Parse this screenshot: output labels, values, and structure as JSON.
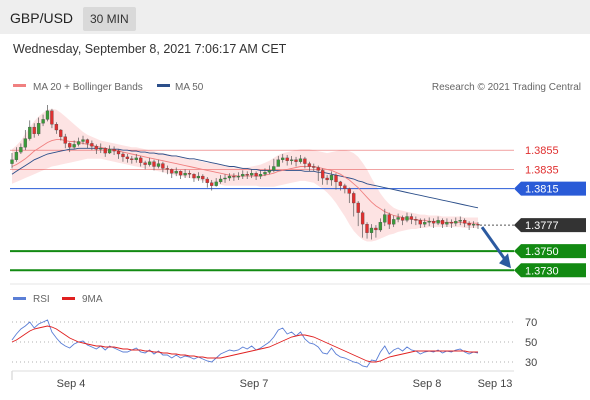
{
  "header": {
    "symbol": "GBP/USD",
    "timeframe": "30 MIN"
  },
  "datetime": "Wednesday, September 8, 2021 7:06:17 AM CET",
  "source": "Research © 2021 Trading Central",
  "legend": [
    {
      "label": "MA 20 + Bollinger Bands",
      "color": "#f08080"
    },
    {
      "label": "MA 50",
      "color": "#2c4f8a"
    }
  ],
  "rsi_legend": [
    {
      "label": "RSI",
      "color": "#5b7fd6"
    },
    {
      "label": "9MA",
      "color": "#e02020"
    }
  ],
  "chart_data": [
    {
      "type": "candlestick",
      "title": "GBP/USD 30 MIN",
      "x_labels": [
        "Sep 4",
        "Sep 7",
        "Sep 8",
        "Sep 13"
      ],
      "ylim": [
        1.3722,
        1.3902
      ],
      "levels": [
        {
          "label": "1.3855",
          "value": 1.3855,
          "kind": "resistance",
          "color": "#e03030"
        },
        {
          "label": "1.3835",
          "value": 1.3835,
          "kind": "resistance",
          "color": "#e03030"
        },
        {
          "label": "1.3815",
          "value": 1.3815,
          "kind": "pivot",
          "color": "#2a5bd7"
        },
        {
          "label": "1.3777",
          "value": 1.3777,
          "kind": "last",
          "color": "#333333"
        },
        {
          "label": "1.3750",
          "value": 1.375,
          "kind": "target",
          "color": "#128a12"
        },
        {
          "label": "1.3730",
          "value": 1.373,
          "kind": "target",
          "color": "#128a12"
        }
      ],
      "close": [
        1.3845,
        1.3853,
        1.3858,
        1.3867,
        1.3879,
        1.3872,
        1.3883,
        1.3887,
        1.3896,
        1.3882,
        1.3876,
        1.3869,
        1.3862,
        1.3858,
        1.3861,
        1.3864,
        1.3866,
        1.3862,
        1.3859,
        1.3856,
        1.3857,
        1.3852,
        1.3856,
        1.3854,
        1.3851,
        1.3848,
        1.3846,
        1.3845,
        1.3847,
        1.3842,
        1.384,
        1.3843,
        1.3838,
        1.3841,
        1.3836,
        1.3835,
        1.3831,
        1.3833,
        1.3829,
        1.3831,
        1.383,
        1.3826,
        1.3828,
        1.3825,
        1.3821,
        1.3818,
        1.3822,
        1.3825,
        1.3826,
        1.3828,
        1.3827,
        1.3828,
        1.383,
        1.3829,
        1.3831,
        1.3828,
        1.383,
        1.3832,
        1.3834,
        1.3838,
        1.3845,
        1.3847,
        1.3844,
        1.3845,
        1.3843,
        1.3846,
        1.3841,
        1.3838,
        1.3837,
        1.3834,
        1.3826,
        1.3824,
        1.3829,
        1.3822,
        1.3818,
        1.3815,
        1.381,
        1.38,
        1.379,
        1.3778,
        1.3769,
        1.3774,
        1.3772,
        1.378,
        1.3788,
        1.3778,
        1.3783,
        1.3785,
        1.3782,
        1.3786,
        1.3783,
        1.3782,
        1.3778,
        1.378,
        1.3781,
        1.3779,
        1.3782,
        1.3778,
        1.378,
        1.3779,
        1.3781,
        1.3782,
        1.3779,
        1.3777,
        1.3778,
        1.3777
      ],
      "high": [
        1.3852,
        1.3858,
        1.3862,
        1.3876,
        1.3886,
        1.3883,
        1.3889,
        1.3892,
        1.3902,
        1.3898,
        1.3884,
        1.3877,
        1.3872,
        1.3863,
        1.3865,
        1.3868,
        1.387,
        1.3867,
        1.3865,
        1.3861,
        1.3862,
        1.3858,
        1.386,
        1.3859,
        1.3856,
        1.3853,
        1.3851,
        1.3849,
        1.3851,
        1.3849,
        1.3844,
        1.3847,
        1.3845,
        1.3845,
        1.3843,
        1.3839,
        1.3836,
        1.3837,
        1.3834,
        1.3835,
        1.3834,
        1.3831,
        1.3832,
        1.383,
        1.3827,
        1.3824,
        1.3826,
        1.3829,
        1.383,
        1.3831,
        1.3831,
        1.3832,
        1.3834,
        1.3833,
        1.3835,
        1.3833,
        1.3834,
        1.3836,
        1.3839,
        1.3846,
        1.3849,
        1.3851,
        1.385,
        1.3849,
        1.3848,
        1.385,
        1.3848,
        1.3843,
        1.3841,
        1.3839,
        1.3836,
        1.3829,
        1.3833,
        1.3831,
        1.3823,
        1.382,
        1.3816,
        1.3812,
        1.3802,
        1.3792,
        1.378,
        1.3778,
        1.3777,
        1.3784,
        1.3794,
        1.379,
        1.3787,
        1.3789,
        1.3787,
        1.379,
        1.3789,
        1.3786,
        1.3784,
        1.3784,
        1.3785,
        1.3784,
        1.3786,
        1.3784,
        1.3784,
        1.3783,
        1.3785,
        1.3786,
        1.3784,
        1.3781,
        1.3781,
        1.378
      ],
      "low": [
        1.3836,
        1.3843,
        1.3851,
        1.3855,
        1.3865,
        1.3868,
        1.387,
        1.388,
        1.3885,
        1.3878,
        1.3872,
        1.3865,
        1.3857,
        1.3853,
        1.3856,
        1.3859,
        1.3861,
        1.3857,
        1.3855,
        1.3851,
        1.3852,
        1.3848,
        1.3851,
        1.385,
        1.3846,
        1.3843,
        1.3842,
        1.3841,
        1.3842,
        1.3838,
        1.3835,
        1.3838,
        1.3834,
        1.3836,
        1.3832,
        1.383,
        1.3826,
        1.3828,
        1.3825,
        1.3826,
        1.3826,
        1.3822,
        1.3823,
        1.3821,
        1.3816,
        1.3813,
        1.3817,
        1.382,
        1.3821,
        1.3823,
        1.3823,
        1.3824,
        1.3825,
        1.3825,
        1.3826,
        1.3824,
        1.3825,
        1.3828,
        1.383,
        1.3832,
        1.384,
        1.3842,
        1.3839,
        1.384,
        1.3838,
        1.3841,
        1.3836,
        1.3833,
        1.3833,
        1.3823,
        1.3819,
        1.3819,
        1.3818,
        1.3814,
        1.3813,
        1.381,
        1.38,
        1.3786,
        1.3776,
        1.3764,
        1.3763,
        1.3762,
        1.3764,
        1.377,
        1.3776,
        1.3773,
        1.3775,
        1.378,
        1.3777,
        1.378,
        1.3778,
        1.3777,
        1.3774,
        1.3775,
        1.3776,
        1.3774,
        1.3777,
        1.3774,
        1.3775,
        1.3774,
        1.3776,
        1.3777,
        1.3775,
        1.3772,
        1.3774,
        1.3773
      ],
      "ma20": [
        1.3838,
        1.384,
        1.3843,
        1.3846,
        1.385,
        1.3854,
        1.3857,
        1.386,
        1.3863,
        1.3865,
        1.3866,
        1.3866,
        1.3865,
        1.3864,
        1.3864,
        1.3863,
        1.3862,
        1.3861,
        1.386,
        1.3859,
        1.3858,
        1.3857,
        1.3856,
        1.3855,
        1.3854,
        1.3853,
        1.3852,
        1.3851,
        1.385,
        1.3849,
        1.3848,
        1.3847,
        1.3846,
        1.3845,
        1.3844,
        1.3843,
        1.3842,
        1.3841,
        1.384,
        1.3839,
        1.3838,
        1.3837,
        1.3836,
        1.3835,
        1.3834,
        1.3833,
        1.3832,
        1.3831,
        1.383,
        1.3829,
        1.3829,
        1.3828,
        1.3828,
        1.3828,
        1.3828,
        1.3828,
        1.3828,
        1.3829,
        1.383,
        1.3831,
        1.3833,
        1.3834,
        1.3835,
        1.3836,
        1.3837,
        1.3838,
        1.3838,
        1.3838,
        1.3838,
        1.3837,
        1.3836,
        1.3835,
        1.3834,
        1.3832,
        1.383,
        1.3827,
        1.3824,
        1.382,
        1.3816,
        1.3811,
        1.3806,
        1.3801,
        1.3797,
        1.3794,
        1.3791,
        1.3789,
        1.3787,
        1.3786,
        1.3785,
        1.3784,
        1.3783,
        1.3783,
        1.3782,
        1.3782,
        1.3781,
        1.3781,
        1.3781,
        1.378,
        1.378,
        1.378,
        1.378,
        1.378,
        1.3779,
        1.3779,
        1.3779,
        1.3779
      ],
      "bb_upper": [
        1.3856,
        1.386,
        1.3865,
        1.3872,
        1.3879,
        1.3885,
        1.389,
        1.3894,
        1.3897,
        1.3898,
        1.3897,
        1.3894,
        1.389,
        1.3886,
        1.3882,
        1.3878,
        1.3874,
        1.3871,
        1.3869,
        1.3867,
        1.3865,
        1.3864,
        1.3863,
        1.3862,
        1.3861,
        1.386,
        1.3859,
        1.3858,
        1.3858,
        1.3857,
        1.3856,
        1.3855,
        1.3854,
        1.3853,
        1.3852,
        1.3851,
        1.385,
        1.3849,
        1.3848,
        1.3847,
        1.3846,
        1.3845,
        1.3844,
        1.3843,
        1.3842,
        1.3842,
        1.3841,
        1.384,
        1.3839,
        1.3838,
        1.3837,
        1.3837,
        1.3837,
        1.3837,
        1.3838,
        1.3839,
        1.384,
        1.3842,
        1.3844,
        1.3847,
        1.385,
        1.3852,
        1.3853,
        1.3854,
        1.3855,
        1.3856,
        1.3856,
        1.3856,
        1.3855,
        1.3854,
        1.3853,
        1.3852,
        1.3853,
        1.3854,
        1.3855,
        1.3855,
        1.3854,
        1.3852,
        1.3848,
        1.3842,
        1.3835,
        1.3826,
        1.3818,
        1.381,
        1.3804,
        1.3799,
        1.3795,
        1.3793,
        1.3792,
        1.3791,
        1.379,
        1.3789,
        1.3788,
        1.3788,
        1.3787,
        1.3787,
        1.3787,
        1.3786,
        1.3786,
        1.3786,
        1.3786,
        1.3786,
        1.3785,
        1.3785,
        1.3785,
        1.3785
      ],
      "bb_lower": [
        1.382,
        1.3822,
        1.3824,
        1.3826,
        1.3828,
        1.383,
        1.3832,
        1.3834,
        1.3836,
        1.3838,
        1.3839,
        1.384,
        1.3841,
        1.3842,
        1.3843,
        1.3844,
        1.3845,
        1.3846,
        1.3846,
        1.3846,
        1.3846,
        1.3845,
        1.3844,
        1.3843,
        1.3842,
        1.3841,
        1.384,
        1.3839,
        1.3838,
        1.3837,
        1.3836,
        1.3835,
        1.3834,
        1.3833,
        1.3832,
        1.3831,
        1.383,
        1.3829,
        1.3828,
        1.3827,
        1.3826,
        1.3825,
        1.3824,
        1.3823,
        1.3822,
        1.3821,
        1.382,
        1.3819,
        1.3818,
        1.3818,
        1.3818,
        1.3818,
        1.3818,
        1.3818,
        1.3818,
        1.3818,
        1.3817,
        1.3817,
        1.3817,
        1.3817,
        1.3818,
        1.3819,
        1.382,
        1.3821,
        1.3822,
        1.3823,
        1.3823,
        1.3822,
        1.3821,
        1.3818,
        1.3815,
        1.3811,
        1.3806,
        1.38,
        1.3793,
        1.3786,
        1.3778,
        1.3771,
        1.3766,
        1.3762,
        1.376,
        1.376,
        1.3761,
        1.3763,
        1.3765,
        1.3767,
        1.3768,
        1.377,
        1.3771,
        1.3772,
        1.3773,
        1.3773,
        1.3774,
        1.3774,
        1.3775,
        1.3775,
        1.3775,
        1.3775,
        1.3775,
        1.3775,
        1.3775,
        1.3775,
        1.3774,
        1.3774,
        1.3774,
        1.3774
      ],
      "ma50": [
        1.383,
        1.3833,
        1.3836,
        1.3839,
        1.3842,
        1.3845,
        1.3847,
        1.3849,
        1.3851,
        1.3852,
        1.3853,
        1.3854,
        1.3855,
        1.3856,
        1.3856,
        1.3857,
        1.3857,
        1.3857,
        1.3857,
        1.3857,
        1.3857,
        1.3857,
        1.3856,
        1.3856,
        1.3856,
        1.3855,
        1.3855,
        1.3854,
        1.3854,
        1.3853,
        1.3853,
        1.3852,
        1.3852,
        1.3851,
        1.3851,
        1.385,
        1.3849,
        1.3849,
        1.3848,
        1.3847,
        1.3846,
        1.3846,
        1.3845,
        1.3844,
        1.3843,
        1.3842,
        1.3841,
        1.384,
        1.3839,
        1.3838,
        1.3838,
        1.3837,
        1.3836,
        1.3836,
        1.3835,
        1.3835,
        1.3834,
        1.3834,
        1.3834,
        1.3834,
        1.3834,
        1.3834,
        1.3834,
        1.3834,
        1.3834,
        1.3834,
        1.3833,
        1.3833,
        1.3833,
        1.3832,
        1.3832,
        1.3831,
        1.383,
        1.3829,
        1.3828,
        1.3827,
        1.3826,
        1.3825,
        1.3823,
        1.3822,
        1.382,
        1.3819,
        1.3818,
        1.3817,
        1.3816,
        1.3815,
        1.3814,
        1.3813,
        1.3812,
        1.3811,
        1.381,
        1.3809,
        1.3808,
        1.3807,
        1.3806,
        1.3805,
        1.3804,
        1.3803,
        1.3802,
        1.3801,
        1.38,
        1.3799,
        1.3798,
        1.3797,
        1.3796,
        1.3795
      ]
    },
    {
      "type": "line",
      "title": "RSI",
      "ylim": [
        20,
        80
      ],
      "ticks": [
        30,
        50,
        70
      ],
      "series": [
        {
          "name": "RSI",
          "color": "#5b7fd6",
          "values": [
            52,
            58,
            63,
            66,
            70,
            64,
            68,
            70,
            72,
            60,
            54,
            49,
            46,
            44,
            48,
            50,
            51,
            47,
            45,
            43,
            46,
            42,
            46,
            44,
            42,
            40,
            40,
            42,
            44,
            40,
            39,
            42,
            38,
            41,
            37,
            37,
            34,
            37,
            34,
            36,
            35,
            33,
            35,
            33,
            31,
            30,
            34,
            38,
            40,
            42,
            41,
            42,
            45,
            43,
            46,
            42,
            44,
            47,
            50,
            55,
            62,
            64,
            58,
            60,
            56,
            60,
            53,
            49,
            48,
            45,
            39,
            38,
            44,
            38,
            35,
            34,
            32,
            30,
            29,
            26,
            25,
            32,
            31,
            40,
            46,
            38,
            42,
            44,
            41,
            45,
            42,
            41,
            38,
            40,
            41,
            40,
            42,
            39,
            41,
            40,
            42,
            43,
            40,
            38,
            40,
            39
          ]
        },
        {
          "name": "9MA",
          "color": "#e02020",
          "values": [
            50,
            52,
            55,
            58,
            61,
            63,
            64,
            65,
            66,
            65,
            63,
            60,
            57,
            54,
            52,
            50,
            49,
            48,
            47,
            46,
            46,
            45,
            45,
            45,
            44,
            43,
            43,
            42,
            42,
            42,
            41,
            41,
            40,
            40,
            39,
            39,
            38,
            38,
            37,
            37,
            36,
            36,
            35,
            35,
            34,
            34,
            34,
            34,
            35,
            36,
            37,
            38,
            39,
            40,
            41,
            42,
            43,
            44,
            45,
            47,
            49,
            51,
            53,
            55,
            56,
            57,
            57,
            56,
            55,
            53,
            51,
            49,
            47,
            45,
            43,
            41,
            39,
            37,
            35,
            33,
            31,
            30,
            30,
            31,
            33,
            35,
            36,
            37,
            38,
            39,
            40,
            41,
            41,
            41,
            41,
            41,
            41,
            41,
            41,
            41,
            41,
            41,
            41,
            40,
            40,
            40
          ]
        }
      ]
    }
  ]
}
